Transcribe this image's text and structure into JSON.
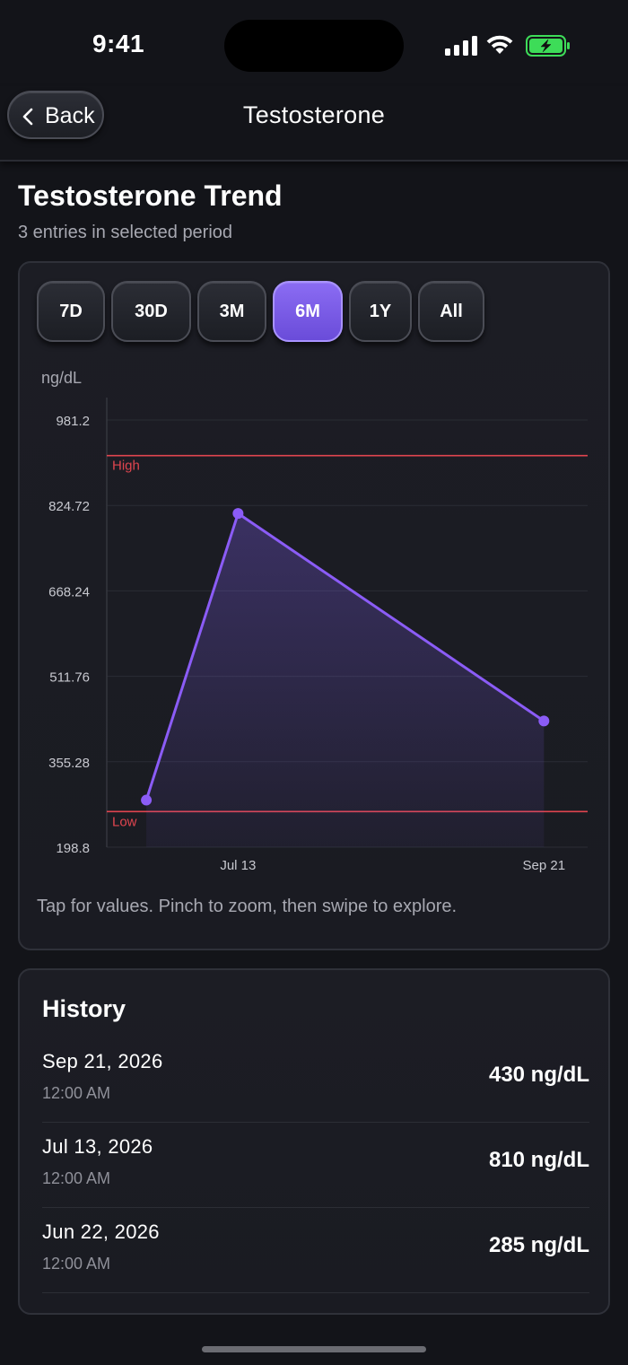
{
  "status_bar": {
    "time": "9:41",
    "icons": [
      "cellular-signal-icon",
      "wifi-icon",
      "battery-charging-icon"
    ],
    "battery_color": "#3ddc58"
  },
  "nav": {
    "back_label": "Back",
    "title": "Testosterone"
  },
  "page": {
    "title": "Testosterone Trend",
    "subtitle": "3 entries in selected period"
  },
  "range_tabs": [
    {
      "label": "7D",
      "active": false
    },
    {
      "label": "30D",
      "active": false
    },
    {
      "label": "3M",
      "active": false
    },
    {
      "label": "6M",
      "active": true
    },
    {
      "label": "1Y",
      "active": false
    },
    {
      "label": "All",
      "active": false
    }
  ],
  "chart_data": {
    "type": "line",
    "ylabel": "ng/dL",
    "ylim": [
      198.8,
      981.2
    ],
    "y_ticks": [
      "981.2",
      "824.72",
      "668.24",
      "511.76",
      "355.28",
      "198.8"
    ],
    "x_ticks": [
      "Jul 13",
      "Sep 21"
    ],
    "series": [
      {
        "x": [
          "2026-06-22",
          "2026-07-13",
          "2026-09-21"
        ],
        "values": [
          285,
          810,
          430
        ]
      }
    ],
    "reference_lines": [
      {
        "label": "High",
        "value": 916
      },
      {
        "label": "Low",
        "value": 264
      }
    ],
    "line_color": "#8b5cf6",
    "reference_color": "#e0454f",
    "area_fill": true,
    "grid": true
  },
  "chart_hint": "Tap for values. Pinch to zoom, then swipe to explore.",
  "history": {
    "title": "History",
    "rows": [
      {
        "date": "Sep 21, 2026",
        "time": "12:00 AM",
        "value": "430 ng/dL"
      },
      {
        "date": "Jul 13, 2026",
        "time": "12:00 AM",
        "value": "810 ng/dL"
      },
      {
        "date": "Jun 22, 2026",
        "time": "12:00 AM",
        "value": "285 ng/dL"
      }
    ]
  }
}
